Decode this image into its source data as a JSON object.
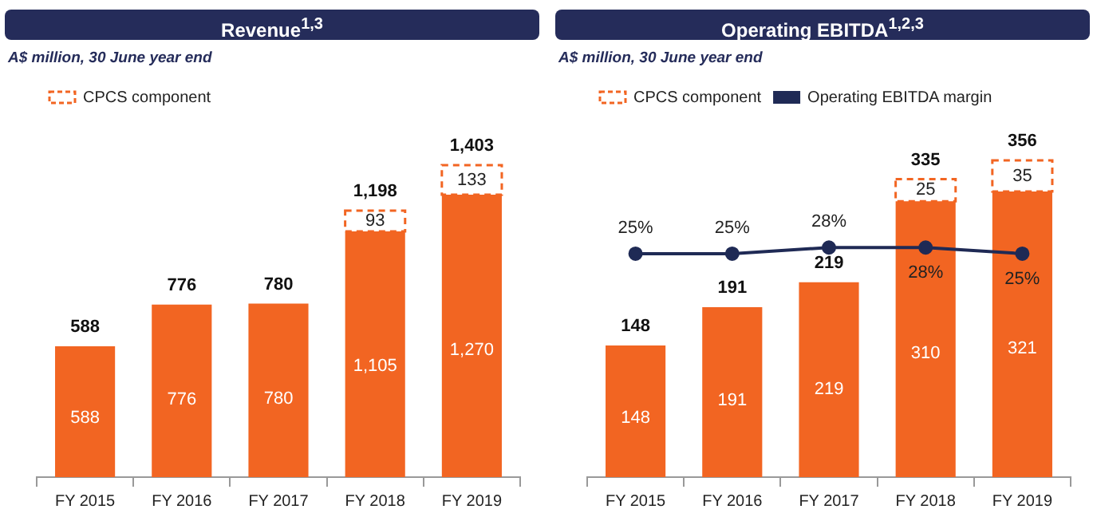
{
  "chart_data": [
    {
      "type": "bar",
      "title": "Revenue$^{1,3}$",
      "subtitle": "A$ million, 30 June year end",
      "categories": [
        "FY 2015",
        "FY 2016",
        "FY 2017",
        "FY 2018",
        "FY 2019"
      ],
      "stacked": true,
      "tick_labels": "x",
      "legend": "top left",
      "totals": [
        "588",
        "776",
        "780",
        "1,198",
        "1,403"
      ],
      "series": [
        {
          "color": "#f26522",
          "values": [
            588,
            776,
            780,
            1105,
            1270
          ],
          "value_labels": [
            "588",
            "776",
            "780",
            "1,105",
            "1,270"
          ]
        },
        {
          "name": "CPCS component",
          "color": "#f26522",
          "line_style": "dashed",
          "values": [
            null,
            null,
            null,
            93,
            133
          ],
          "value_labels": [
            null,
            null,
            null,
            "93",
            "133"
          ]
        }
      ]
    },
    {
      "type": "bar",
      "title": "Operating EBITDA$^{1,2,3}$",
      "subtitle": "A$ million, 30 June year end",
      "categories": [
        "FY 2015",
        "FY 2016",
        "FY 2017",
        "FY 2018",
        "FY 2019"
      ],
      "stacked": true,
      "tick_labels": "x",
      "legend": "top left",
      "totals": [
        "148",
        "191",
        "219",
        "335",
        "356"
      ],
      "series": [
        {
          "color": "#f26522",
          "values": [
            148,
            191,
            219,
            310,
            321
          ],
          "value_labels": [
            "148",
            "191",
            "219",
            "310",
            "321"
          ]
        },
        {
          "name": "CPCS component",
          "color": "#f26522",
          "line_style": "dashed",
          "values": [
            null,
            null,
            null,
            25,
            35
          ],
          "value_labels": [
            null,
            null,
            null,
            "25",
            "35"
          ]
        },
        {
          "name": "Operating EBITDA margin",
          "type": "line",
          "axis": "y2",
          "marker": "circle",
          "color": "#1f2a55",
          "values": [
            25,
            25,
            28,
            28,
            25
          ],
          "value_labels": [
            "25%",
            "25%",
            "28%",
            "28%",
            "25%"
          ]
        }
      ]
    }
  ]
}
